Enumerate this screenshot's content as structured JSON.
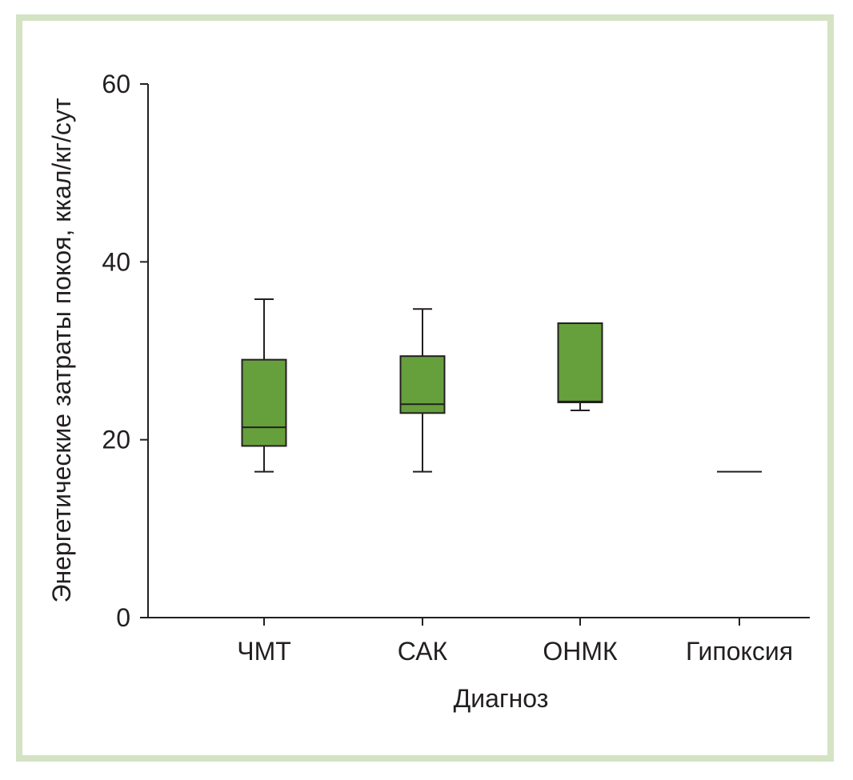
{
  "chart_data": {
    "type": "boxplot",
    "xlabel": "Диагноз",
    "ylabel": "Энергетические затраты покоя, ккал/кг/сут",
    "ylim": [
      0,
      60
    ],
    "yticks": [
      "0",
      "20",
      "40",
      "60"
    ],
    "categories": [
      "ЧМТ",
      "САК",
      "ОНМК",
      "Гипоксия"
    ],
    "boxes": [
      {
        "category": "ЧМТ",
        "min": 16.4,
        "q1": 19.3,
        "median": 21.4,
        "q3": 29.0,
        "max": 35.8
      },
      {
        "category": "САК",
        "min": 16.4,
        "q1": 23.0,
        "median": 24.0,
        "q3": 29.4,
        "max": 34.7
      },
      {
        "category": "ОНМК",
        "min": 23.3,
        "q1": 24.2,
        "median": 24.3,
        "q3": 33.1,
        "max": 33.1
      },
      {
        "category": "Гипоксия",
        "min": 16.4,
        "q1": 16.4,
        "median": 16.4,
        "q3": 16.4,
        "max": 16.4
      }
    ],
    "box_color": "#66a03c",
    "line_color": "#231f20",
    "frame_color": "#d4e3c4"
  }
}
